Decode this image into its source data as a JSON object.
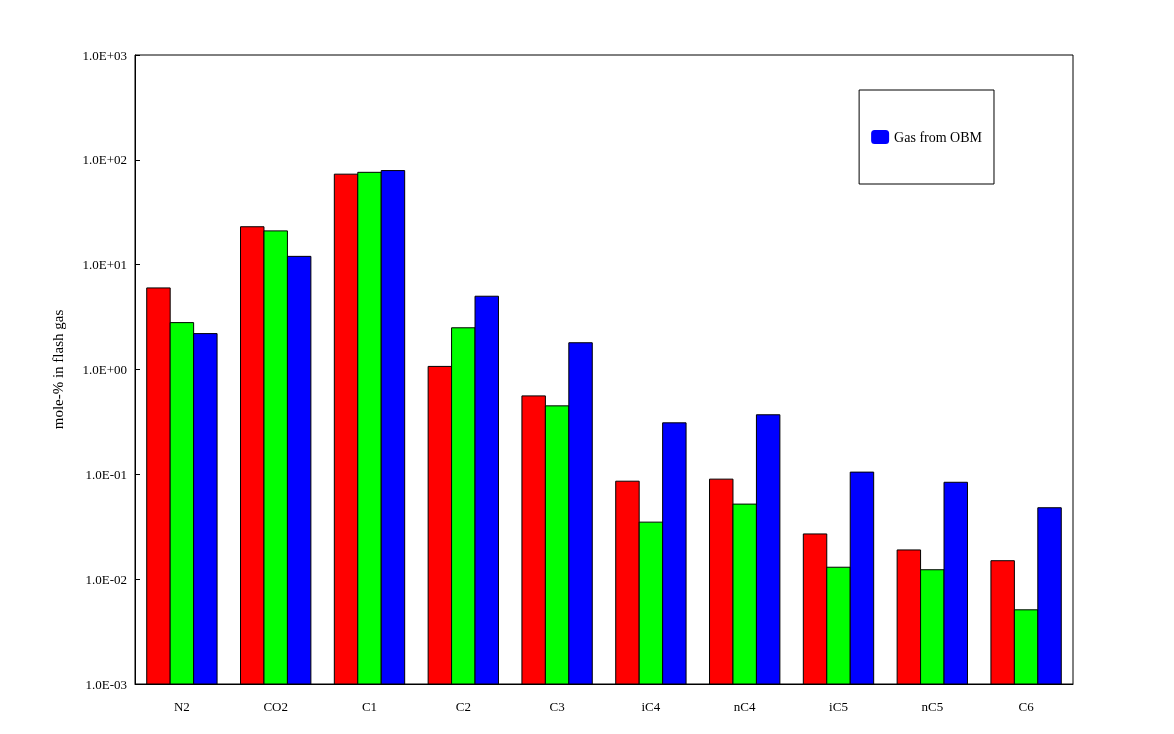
{
  "chart_data": {
    "type": "bar",
    "ylabel": "mole-% in flash gas",
    "categories": [
      "N2",
      "CO2",
      "C1",
      "C2",
      "C3",
      "iC4",
      "nC4",
      "iC5",
      "nC5",
      "C6"
    ],
    "series": [
      {
        "color": "#ff0000",
        "values": [
          6.0,
          23,
          73,
          1.07,
          0.56,
          0.086,
          0.09,
          0.027,
          0.019,
          0.015
        ]
      },
      {
        "color": "#00ff00",
        "values": [
          2.8,
          21,
          76,
          2.5,
          0.45,
          0.035,
          0.052,
          0.013,
          0.0123,
          0.0051
        ]
      },
      {
        "name": "Gas from OBM",
        "color": "#0000ff",
        "values": [
          2.2,
          12,
          79,
          5.0,
          1.8,
          0.31,
          0.37,
          0.105,
          0.084,
          0.048
        ]
      }
    ],
    "log": "y",
    "ylim": [
      0.001,
      1000
    ],
    "yticks": [
      {
        "value": 0.001,
        "label": "1.0E-03"
      },
      {
        "value": 0.01,
        "label": "1.0E-02"
      },
      {
        "value": 0.1,
        "label": "1.0E-01"
      },
      {
        "value": 1,
        "label": "1.0E+00"
      },
      {
        "value": 10,
        "label": "1.0E+01"
      },
      {
        "value": 100,
        "label": "1.0E+02"
      },
      {
        "value": 1000,
        "label": "1.0E+03"
      }
    ],
    "grid": false,
    "legend": "top right"
  }
}
